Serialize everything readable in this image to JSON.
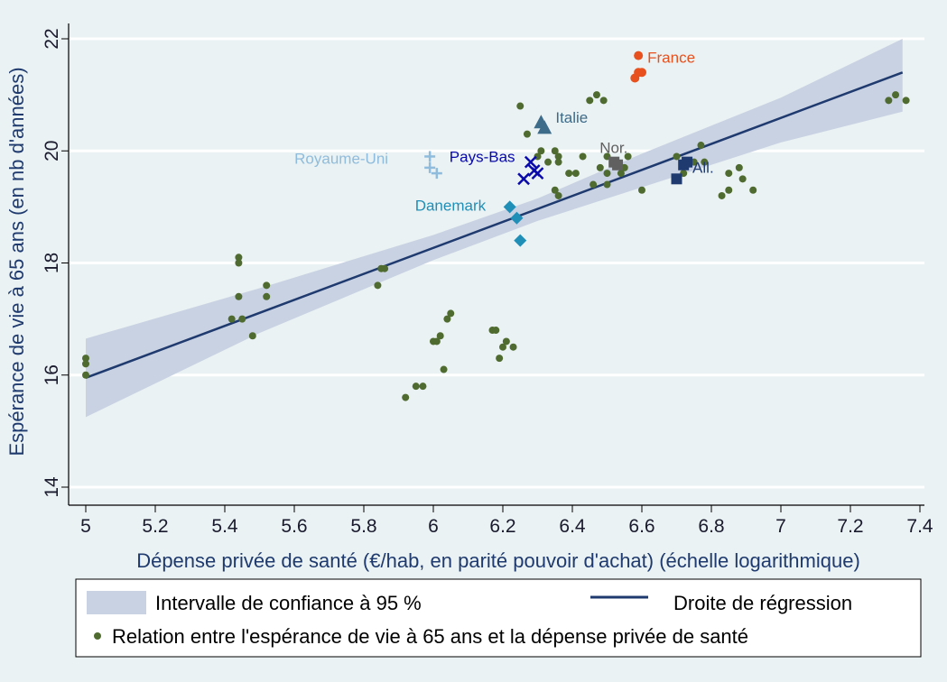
{
  "chart_data": {
    "type": "scatter",
    "xlabel": "Dépense privée de santé (€/hab, en parité pouvoir d'achat) (échelle logarithmique)",
    "ylabel": "Espérance de vie à 65 ans (en nb d'années)",
    "xlim": [
      4.95,
      7.42
    ],
    "ylim": [
      13.9,
      22.3
    ],
    "xticks": [
      5,
      5.2,
      5.4,
      5.6,
      5.8,
      6,
      6.2,
      6.4,
      6.6,
      6.8,
      7,
      7.2,
      7.4
    ],
    "xtick_labels": [
      "5",
      "5.2",
      "5.4",
      "5.6",
      "5.8",
      "6",
      "6.2",
      "6.4",
      "6.6",
      "6.8",
      "7",
      "7.2",
      "7.4"
    ],
    "yticks": [
      14,
      16,
      18,
      20,
      22
    ],
    "ytick_labels": [
      "14",
      "16",
      "18",
      "20",
      "22"
    ],
    "grid": "horizontal",
    "regression": {
      "name": "Droite de régression",
      "x": [
        5.0,
        7.35
      ],
      "y": [
        15.95,
        21.4
      ],
      "color": "#1f3a6e"
    },
    "confidence_band": {
      "name": "Intervalle de confiance à 95 %",
      "x": [
        5.0,
        5.5,
        6.0,
        6.3,
        6.6,
        7.0,
        7.35
      ],
      "lower": [
        15.25,
        16.75,
        18.05,
        18.75,
        19.35,
        20.15,
        20.7
      ],
      "upper": [
        16.65,
        17.55,
        18.5,
        19.15,
        19.95,
        20.95,
        22.0
      ],
      "color": "#c9d2e3"
    },
    "series": [
      {
        "name": "Relation entre l'espérance de vie à 65 ans et la dépense privée de santé",
        "marker": "dot",
        "color": "#4f6b2f",
        "points": [
          [
            5.0,
            16.3
          ],
          [
            5.0,
            16.2
          ],
          [
            5.0,
            16.0
          ],
          [
            5.44,
            18.1
          ],
          [
            5.44,
            18.0
          ],
          [
            5.44,
            17.4
          ],
          [
            5.42,
            17.0
          ],
          [
            5.45,
            17.0
          ],
          [
            5.48,
            16.7
          ],
          [
            5.52,
            17.6
          ],
          [
            5.52,
            17.4
          ],
          [
            5.84,
            17.6
          ],
          [
            5.85,
            17.9
          ],
          [
            5.86,
            17.9
          ],
          [
            5.92,
            15.6
          ],
          [
            5.95,
            15.8
          ],
          [
            5.97,
            15.8
          ],
          [
            6.0,
            16.6
          ],
          [
            6.01,
            16.6
          ],
          [
            6.02,
            16.7
          ],
          [
            6.03,
            16.1
          ],
          [
            6.04,
            17.0
          ],
          [
            6.05,
            17.1
          ],
          [
            6.17,
            16.8
          ],
          [
            6.18,
            16.8
          ],
          [
            6.19,
            16.3
          ],
          [
            6.2,
            16.5
          ],
          [
            6.21,
            16.6
          ],
          [
            6.23,
            16.5
          ],
          [
            6.25,
            20.8
          ],
          [
            6.27,
            20.3
          ],
          [
            6.3,
            19.9
          ],
          [
            6.31,
            20.0
          ],
          [
            6.33,
            19.8
          ],
          [
            6.35,
            20.0
          ],
          [
            6.35,
            19.3
          ],
          [
            6.36,
            19.9
          ],
          [
            6.36,
            19.8
          ],
          [
            6.36,
            19.2
          ],
          [
            6.39,
            19.6
          ],
          [
            6.41,
            19.6
          ],
          [
            6.43,
            19.9
          ],
          [
            6.45,
            20.9
          ],
          [
            6.47,
            21.0
          ],
          [
            6.49,
            20.9
          ],
          [
            6.46,
            19.4
          ],
          [
            6.48,
            19.7
          ],
          [
            6.5,
            19.6
          ],
          [
            6.5,
            19.4
          ],
          [
            6.5,
            19.9
          ],
          [
            6.52,
            19.8
          ],
          [
            6.54,
            19.6
          ],
          [
            6.55,
            19.7
          ],
          [
            6.56,
            19.9
          ],
          [
            6.6,
            19.3
          ],
          [
            6.7,
            19.9
          ],
          [
            6.72,
            19.6
          ],
          [
            6.75,
            19.8
          ],
          [
            6.77,
            20.1
          ],
          [
            6.78,
            19.8
          ],
          [
            6.83,
            19.2
          ],
          [
            6.85,
            19.3
          ],
          [
            6.85,
            19.6
          ],
          [
            6.88,
            19.7
          ],
          [
            6.89,
            19.5
          ],
          [
            6.92,
            19.3
          ],
          [
            7.31,
            20.9
          ],
          [
            7.33,
            21.0
          ],
          [
            7.36,
            20.9
          ]
        ]
      },
      {
        "name": "France",
        "marker": "dot",
        "color": "#e8501e",
        "label_dx": 10,
        "label_dy": 8,
        "points": [
          [
            6.59,
            21.7
          ],
          [
            6.59,
            21.4
          ],
          [
            6.6,
            21.4
          ],
          [
            6.58,
            21.3
          ]
        ]
      },
      {
        "name": "Italie",
        "marker": "triangle",
        "color": "#3d6b8a",
        "label_dx": 16,
        "label_dy": 0,
        "points": [
          [
            6.31,
            20.5
          ],
          [
            6.32,
            20.4
          ]
        ]
      },
      {
        "name": "Nor.",
        "marker": "square",
        "color": "#606060",
        "label_dx": -16,
        "label_dy": -10,
        "points": [
          [
            6.52,
            19.8
          ],
          [
            6.53,
            19.75
          ]
        ]
      },
      {
        "name": "Pays-Bas",
        "marker": "x",
        "color": "#0a0aaa",
        "label_dx": -90,
        "label_dy": 0,
        "points": [
          [
            6.28,
            19.8
          ],
          [
            6.26,
            19.5
          ],
          [
            6.3,
            19.6
          ],
          [
            6.29,
            19.65
          ]
        ]
      },
      {
        "name": "Royaume-Uni",
        "marker": "plus",
        "color": "#8fbcdc",
        "label_dx": -150,
        "label_dy": 8,
        "points": [
          [
            5.99,
            19.9
          ],
          [
            5.99,
            19.7
          ],
          [
            6.01,
            19.6
          ]
        ]
      },
      {
        "name": "All.",
        "marker": "square",
        "color": "#1f3a6e",
        "label_dx": 6,
        "label_dy": 12,
        "points": [
          [
            6.73,
            19.8
          ],
          [
            6.72,
            19.75
          ],
          [
            6.7,
            19.5
          ]
        ]
      },
      {
        "name": "Danemark",
        "marker": "diamond",
        "color": "#1f8fb8",
        "label_dx": -105,
        "label_dy": 4,
        "points": [
          [
            6.22,
            19.0
          ],
          [
            6.24,
            18.8
          ],
          [
            6.25,
            18.4
          ]
        ]
      }
    ]
  },
  "legend": {
    "band_label": "Intervalle de confiance à 95 %",
    "line_label": "Droite de régression",
    "dot_label": "Relation entre l'espérance de vie à 65 ans et la dépense privée de santé"
  }
}
